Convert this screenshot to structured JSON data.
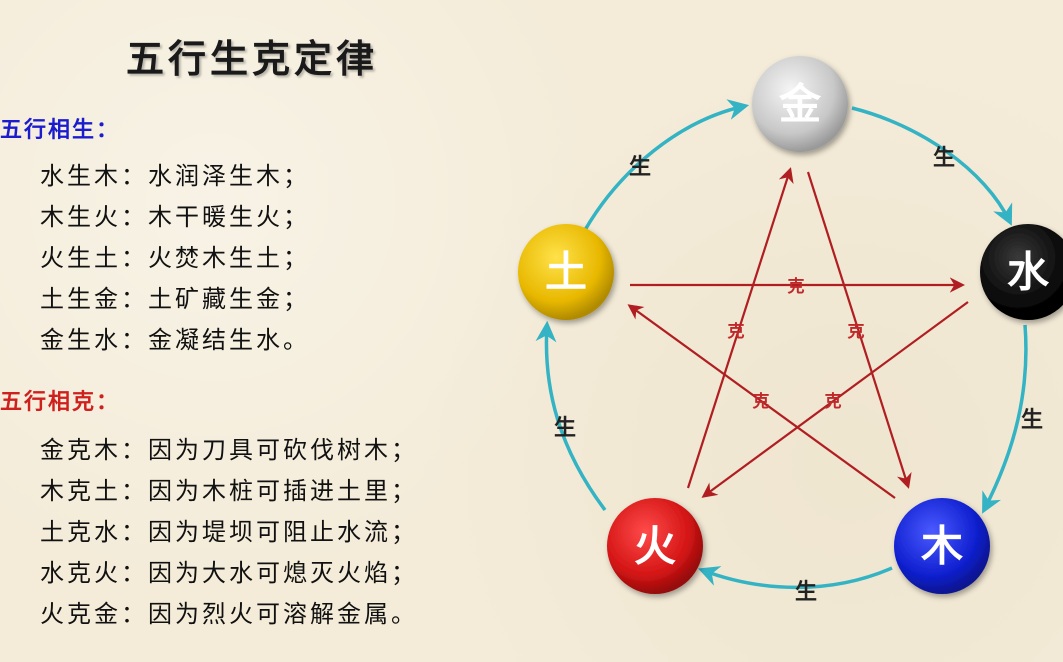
{
  "title": "五行生克定律",
  "sheng": {
    "heading": "五行相生：",
    "heading_color": "#1c1ccf",
    "items": [
      "水生木：水润泽生木；",
      "木生火：木干暖生火；",
      "火生土：火焚木生土；",
      "土生金：土矿藏生金；",
      "金生水：金凝结生水。"
    ]
  },
  "ke": {
    "heading": "五行相克：",
    "heading_color": "#d0201e",
    "items": [
      "金克木：因为刀具可砍伐树木；",
      "木克土：因为木桩可插进土里；",
      "土克水：因为堤坝可阻止水流；",
      "水克火：因为大水可熄灭火焰；",
      "火克金：因为烈火可溶解金属。"
    ]
  },
  "diagram": {
    "colors": {
      "sheng_arrow": "#33b3c4",
      "ke_arrow": "#b01e22",
      "ke_label": "#c0282a"
    },
    "elements": {
      "jin": {
        "label": "金",
        "color": "#cfcfcf",
        "text_color": "#ffffff"
      },
      "shui": {
        "label": "水",
        "color": "#0a0a0a",
        "text_color": "#ffffff"
      },
      "mu": {
        "label": "木",
        "color": "#1020d0",
        "text_color": "#ffffff"
      },
      "huo": {
        "label": "火",
        "color": "#d41515",
        "text_color": "#ffffff"
      },
      "tu": {
        "label": "土",
        "color": "#e8b800",
        "text_color": "#ffffff"
      }
    },
    "sheng_label": "生",
    "ke_label": "克"
  }
}
